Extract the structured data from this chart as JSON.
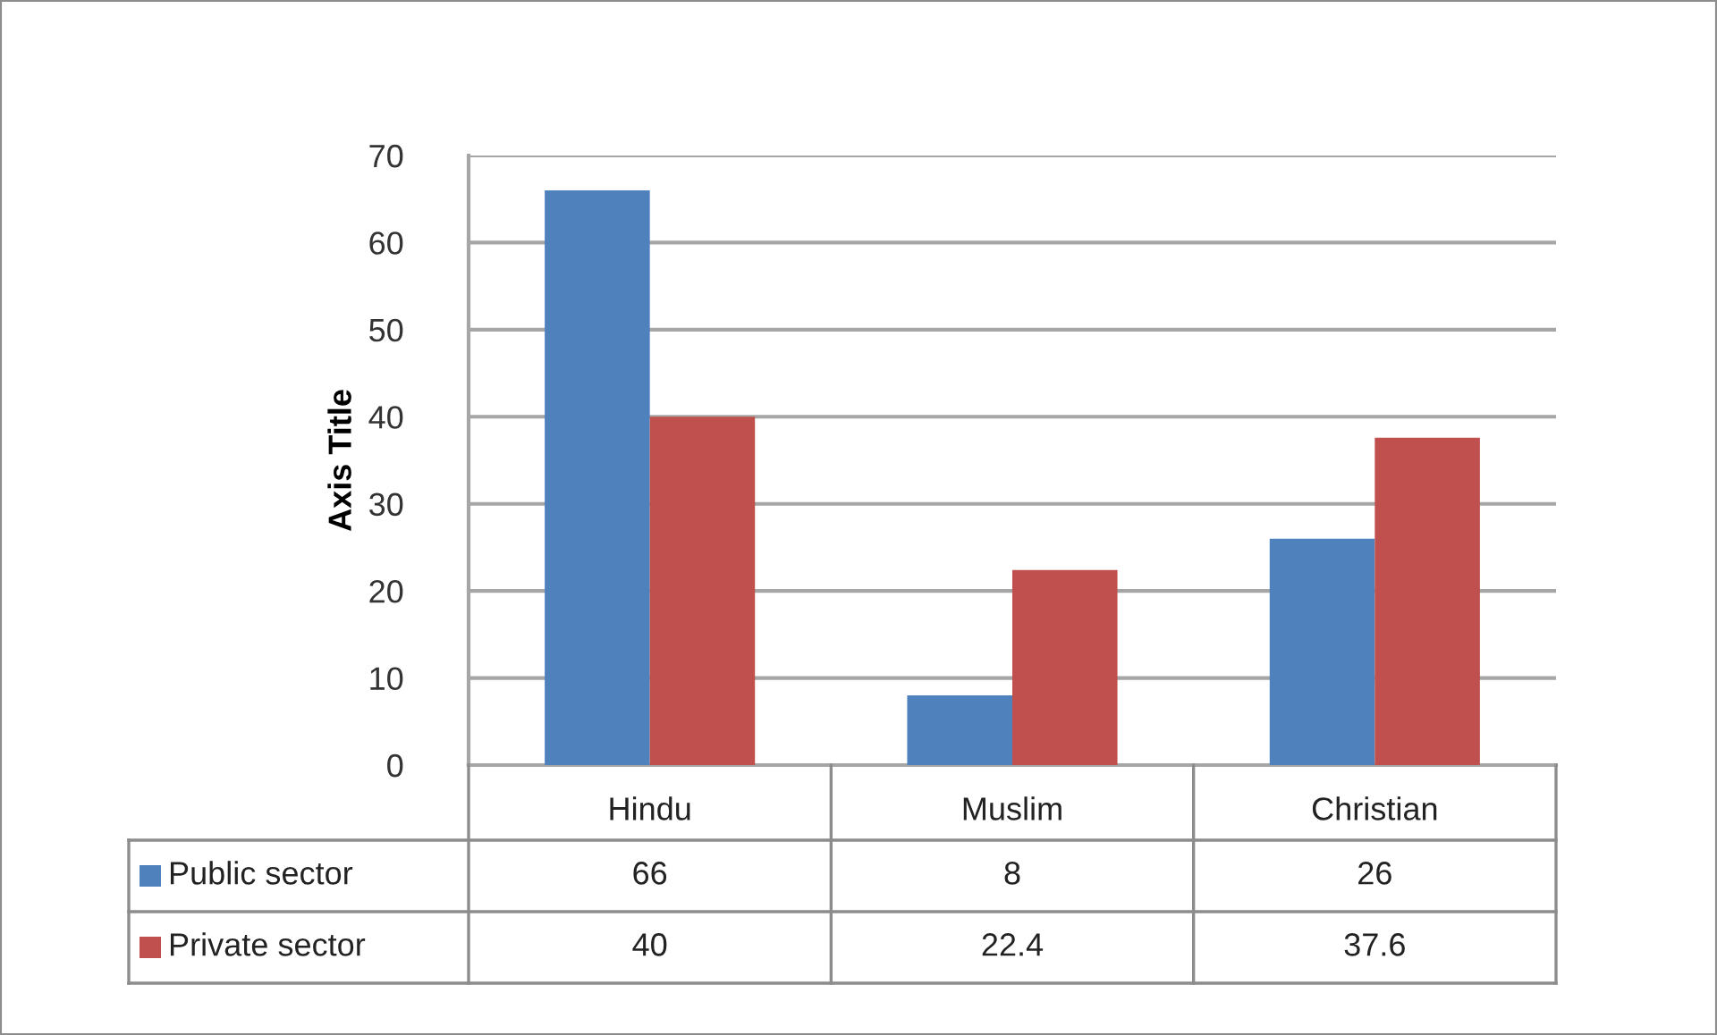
{
  "chart_data": {
    "type": "bar",
    "ylabel": "Axis Title",
    "categories": [
      "Hindu",
      "Muslim",
      "Christian"
    ],
    "series": [
      {
        "name": "Public sector",
        "color": "#4f81bd",
        "values": [
          66,
          8,
          26
        ]
      },
      {
        "name": "Private sector",
        "color": "#c0504d",
        "values": [
          40,
          22.4,
          37.6
        ]
      }
    ],
    "ylim": [
      0,
      70
    ],
    "yticks": [
      0,
      10,
      20,
      30,
      40,
      50,
      60,
      70
    ],
    "grid": "y",
    "legend": "bottom",
    "data_labels": true
  }
}
